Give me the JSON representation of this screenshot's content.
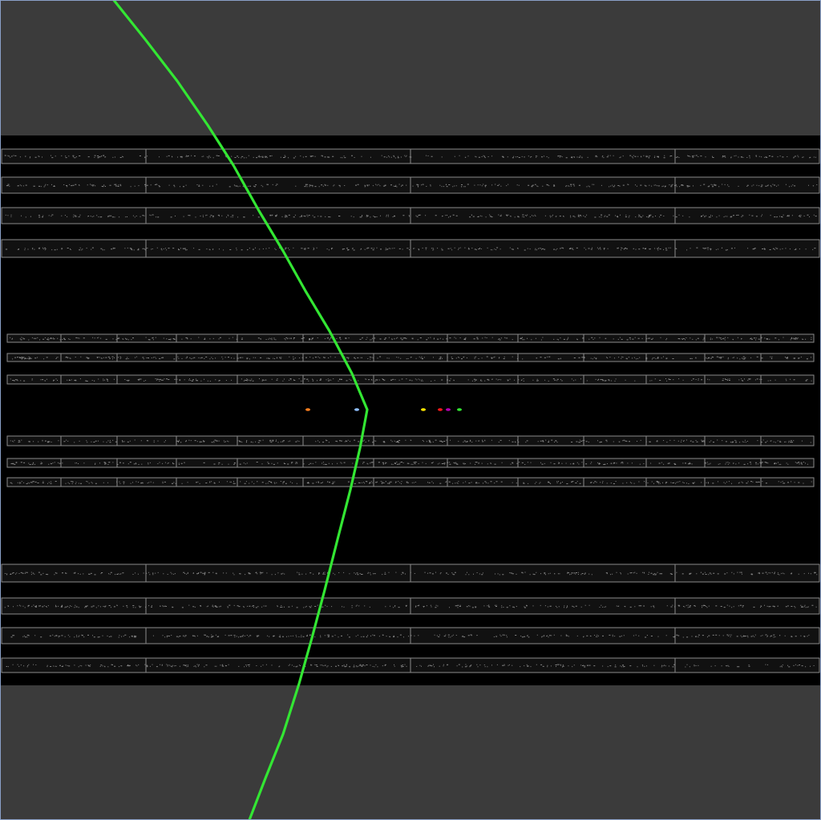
{
  "scene": {
    "background_color": "#3b3b3b",
    "band_color": "#000000",
    "row_border_color": "#8a8a8a",
    "row_fill_color": "#111111",
    "speckle_color": "#9a9a9a",
    "frame_border_color": "#8aa0c8",
    "trajectory_color": "#33e633",
    "marker_colors": [
      "#ff7f1f",
      "#8fbfff",
      "#ffe600",
      "#ff1a1a",
      "#b400b4",
      "#33e633"
    ]
  }
}
